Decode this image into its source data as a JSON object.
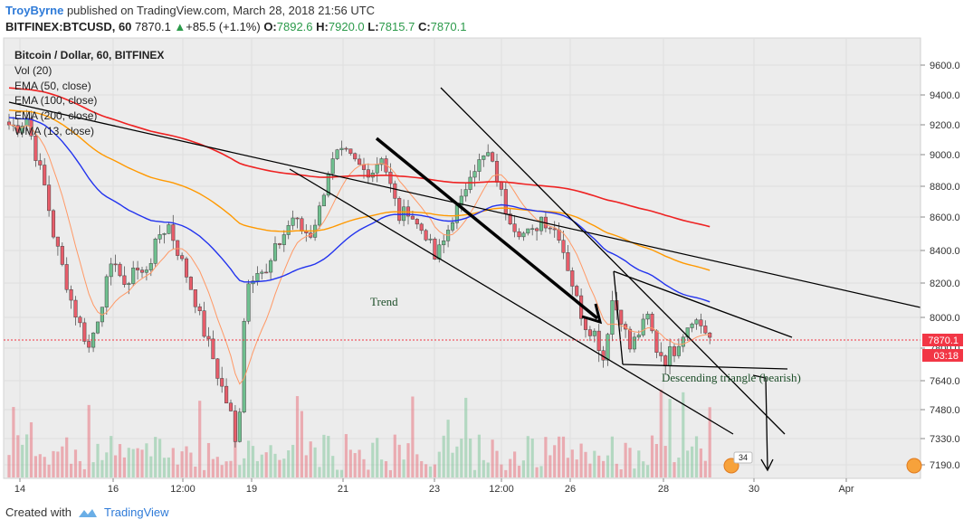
{
  "header": {
    "author": "TroyByrne",
    "published_text": "published on TradingView.com, March 28, 2018 21:56 UTC",
    "symbol": "BITFINEX:BTCUSD, 60",
    "last": "7870.1",
    "change": "+85.5 (+1.1%)",
    "o_label": "O:",
    "o_value": "7892.6",
    "h_label": "H:",
    "h_value": "7920.0",
    "l_label": "L:",
    "l_value": "7815.7",
    "c_label": "C:",
    "c_value": "7870.1"
  },
  "legend": {
    "title": "Bitcoin / Dollar, 60, BITFINEX",
    "items": [
      "Vol (20)",
      "EMA (50, close)",
      "EMA (100, close)",
      "EMA (200, close)",
      "WMA (13, close)"
    ]
  },
  "footer": {
    "created_with": "Created with",
    "brand": "TradingView"
  },
  "colors": {
    "up": "#6fc08f",
    "down": "#e85d6a",
    "ema50": "#2233ee",
    "ema100": "#ff9900",
    "ema200": "#ee2222",
    "wma13": "#ff9966",
    "lines": "#000000",
    "price_badge": "#f23645"
  },
  "chart_data": {
    "type": "candlestick",
    "title": "Bitcoin / Dollar, 60, BITFINEX",
    "y_ticks": [
      7190,
      7330,
      7480,
      7640,
      7800,
      8000,
      8200,
      8400,
      8600,
      8800,
      9000,
      9200,
      9400,
      9600
    ],
    "y_tick_labels": [
      "7190.0",
      "7330.0",
      "7480.0",
      "7640.0",
      "7800.0",
      "8000.0",
      "8200.0",
      "8400.0",
      "8600.0",
      "8800.0",
      "9000.0",
      "9200.0",
      "9400.0",
      "9600.0"
    ],
    "x_tick_labels": [
      "14",
      "16",
      "12:00",
      "19",
      "21",
      "23",
      "12:00",
      "26",
      "28",
      "30",
      "Apr"
    ],
    "current_price": "7870.1",
    "countdown": "03:18",
    "annotations": [
      "Trend",
      "Descending triangle (bearish)"
    ],
    "event_badge": "34",
    "close_anchors": [
      [
        0,
        9200
      ],
      [
        2,
        9180
      ],
      [
        4,
        9250
      ],
      [
        6,
        9000
      ],
      [
        8,
        8800
      ],
      [
        10,
        8500
      ],
      [
        12,
        8300
      ],
      [
        14,
        8100
      ],
      [
        16,
        7950
      ],
      [
        18,
        7800
      ],
      [
        20,
        8000
      ],
      [
        22,
        8200
      ],
      [
        24,
        8350
      ],
      [
        26,
        8150
      ],
      [
        28,
        8300
      ],
      [
        30,
        8250
      ],
      [
        32,
        8350
      ],
      [
        34,
        8500
      ],
      [
        36,
        8550
      ],
      [
        38,
        8400
      ],
      [
        40,
        8250
      ],
      [
        42,
        8100
      ],
      [
        44,
        7900
      ],
      [
        46,
        7750
      ],
      [
        48,
        7600
      ],
      [
        50,
        7450
      ],
      [
        51,
        7300
      ],
      [
        52,
        7500
      ],
      [
        53,
        8000
      ],
      [
        54,
        8200
      ],
      [
        56,
        8300
      ],
      [
        58,
        8250
      ],
      [
        60,
        8400
      ],
      [
        62,
        8500
      ],
      [
        64,
        8600
      ],
      [
        66,
        8520
      ],
      [
        68,
        8500
      ],
      [
        70,
        8650
      ],
      [
        72,
        8900
      ],
      [
        74,
        9000
      ],
      [
        76,
        9000
      ],
      [
        78,
        8950
      ],
      [
        80,
        8900
      ],
      [
        82,
        8900
      ],
      [
        84,
        9000
      ],
      [
        86,
        8800
      ],
      [
        88,
        8600
      ],
      [
        90,
        8650
      ],
      [
        92,
        8550
      ],
      [
        94,
        8500
      ],
      [
        96,
        8350
      ],
      [
        98,
        8450
      ],
      [
        100,
        8600
      ],
      [
        102,
        8700
      ],
      [
        104,
        8900
      ],
      [
        106,
        8950
      ],
      [
        108,
        9000
      ],
      [
        110,
        8850
      ],
      [
        112,
        8650
      ],
      [
        114,
        8550
      ],
      [
        116,
        8500
      ],
      [
        118,
        8500
      ],
      [
        120,
        8600
      ],
      [
        122,
        8550
      ],
      [
        124,
        8500
      ],
      [
        126,
        8300
      ],
      [
        128,
        8100
      ],
      [
        130,
        7950
      ],
      [
        132,
        7900
      ],
      [
        134,
        7750
      ],
      [
        136,
        8100
      ],
      [
        138,
        8000
      ],
      [
        140,
        7800
      ],
      [
        142,
        7900
      ],
      [
        144,
        8000
      ],
      [
        146,
        7800
      ],
      [
        148,
        7750
      ],
      [
        150,
        7800
      ],
      [
        152,
        7900
      ],
      [
        154,
        8000
      ],
      [
        156,
        7950
      ],
      [
        158,
        7870
      ]
    ],
    "close_anchors_note": "x is hourly bar index from left; y is price in USD"
  }
}
